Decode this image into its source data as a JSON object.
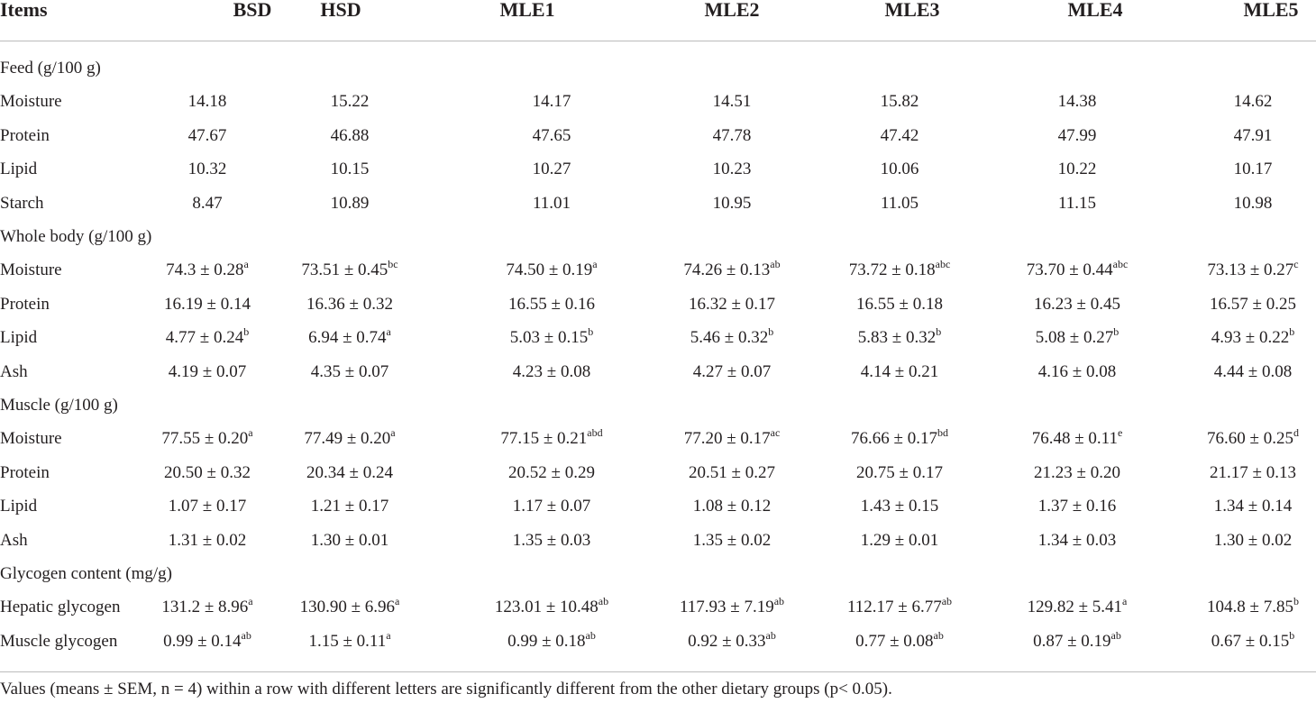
{
  "table": {
    "columns": [
      "Items",
      "BSD",
      "HSD",
      "MLE1",
      "MLE2",
      "MLE3",
      "MLE4",
      "MLE5"
    ],
    "sections": [
      {
        "title": "Feed (g/100 g)",
        "rows": [
          {
            "label": "Moisture",
            "cells": [
              {
                "text": "14.18"
              },
              {
                "text": "15.22"
              },
              {
                "text": "14.17"
              },
              {
                "text": "14.51"
              },
              {
                "text": "15.82"
              },
              {
                "text": "14.38"
              },
              {
                "text": "14.62"
              }
            ]
          },
          {
            "label": "Protein",
            "cells": [
              {
                "text": "47.67"
              },
              {
                "text": "46.88"
              },
              {
                "text": "47.65"
              },
              {
                "text": "47.78"
              },
              {
                "text": "47.42"
              },
              {
                "text": "47.99"
              },
              {
                "text": "47.91"
              }
            ]
          },
          {
            "label": "Lipid",
            "cells": [
              {
                "text": "10.32"
              },
              {
                "text": "10.15"
              },
              {
                "text": "10.27"
              },
              {
                "text": "10.23"
              },
              {
                "text": "10.06"
              },
              {
                "text": "10.22"
              },
              {
                "text": "10.17"
              }
            ]
          },
          {
            "label": "Starch",
            "cells": [
              {
                "text": "8.47"
              },
              {
                "text": "10.89"
              },
              {
                "text": "11.01"
              },
              {
                "text": "10.95"
              },
              {
                "text": "11.05"
              },
              {
                "text": "11.15"
              },
              {
                "text": "10.98"
              }
            ]
          }
        ]
      },
      {
        "title": "Whole body (g/100 g)",
        "rows": [
          {
            "label": "Moisture",
            "cells": [
              {
                "text": "74.3 ± 0.28",
                "sup": "a"
              },
              {
                "text": "73.51 ± 0.45",
                "sup": "bc"
              },
              {
                "text": "74.50 ± 0.19",
                "sup": "a"
              },
              {
                "text": "74.26 ± 0.13",
                "sup": "ab"
              },
              {
                "text": "73.72 ± 0.18",
                "sup": "abc"
              },
              {
                "text": "73.70 ± 0.44",
                "sup": "abc"
              },
              {
                "text": "73.13 ± 0.27",
                "sup": "c"
              }
            ]
          },
          {
            "label": "Protein",
            "cells": [
              {
                "text": "16.19 ± 0.14"
              },
              {
                "text": "16.36 ± 0.32"
              },
              {
                "text": "16.55 ± 0.16"
              },
              {
                "text": "16.32 ± 0.17"
              },
              {
                "text": "16.55 ± 0.18"
              },
              {
                "text": "16.23 ± 0.45"
              },
              {
                "text": "16.57 ± 0.25"
              }
            ]
          },
          {
            "label": "Lipid",
            "cells": [
              {
                "text": "4.77 ± 0.24",
                "sup": "b"
              },
              {
                "text": "6.94 ± 0.74",
                "sup": "a"
              },
              {
                "text": "5.03 ± 0.15",
                "sup": "b"
              },
              {
                "text": "5.46 ± 0.32",
                "sup": "b"
              },
              {
                "text": "5.83 ± 0.32",
                "sup": "b"
              },
              {
                "text": "5.08 ± 0.27",
                "sup": "b"
              },
              {
                "text": "4.93 ± 0.22",
                "sup": "b"
              }
            ]
          },
          {
            "label": "Ash",
            "cells": [
              {
                "text": "4.19 ± 0.07"
              },
              {
                "text": "4.35 ± 0.07"
              },
              {
                "text": "4.23 ± 0.08"
              },
              {
                "text": "4.27 ± 0.07"
              },
              {
                "text": "4.14 ± 0.21"
              },
              {
                "text": "4.16 ± 0.08"
              },
              {
                "text": "4.44 ± 0.08"
              }
            ]
          }
        ]
      },
      {
        "title": "Muscle (g/100 g)",
        "rows": [
          {
            "label": "Moisture",
            "cells": [
              {
                "text": "77.55 ± 0.20",
                "sup": "a"
              },
              {
                "text": "77.49 ± 0.20",
                "sup": "a"
              },
              {
                "text": "77.15 ± 0.21",
                "sup": "abd"
              },
              {
                "text": "77.20 ± 0.17",
                "sup": "ac"
              },
              {
                "text": "76.66 ± 0.17",
                "sup": "bd"
              },
              {
                "text": "76.48 ± 0.11",
                "sup": "e"
              },
              {
                "text": "76.60 ± 0.25",
                "sup": "d"
              }
            ]
          },
          {
            "label": "Protein",
            "cells": [
              {
                "text": "20.50 ± 0.32"
              },
              {
                "text": "20.34 ± 0.24"
              },
              {
                "text": "20.52 ± 0.29"
              },
              {
                "text": "20.51 ± 0.27"
              },
              {
                "text": "20.75 ± 0.17"
              },
              {
                "text": "21.23 ± 0.20"
              },
              {
                "text": "21.17 ± 0.13"
              }
            ]
          },
          {
            "label": "Lipid",
            "cells": [
              {
                "text": "1.07 ± 0.17"
              },
              {
                "text": "1.21 ± 0.17"
              },
              {
                "text": "1.17 ± 0.07"
              },
              {
                "text": "1.08 ± 0.12"
              },
              {
                "text": "1.43 ± 0.15"
              },
              {
                "text": "1.37 ± 0.16"
              },
              {
                "text": "1.34 ± 0.14"
              }
            ]
          },
          {
            "label": "Ash",
            "cells": [
              {
                "text": "1.31 ± 0.02"
              },
              {
                "text": "1.30 ± 0.01"
              },
              {
                "text": "1.35 ± 0.03"
              },
              {
                "text": "1.35 ± 0.02"
              },
              {
                "text": "1.29 ± 0.01"
              },
              {
                "text": "1.34 ± 0.03"
              },
              {
                "text": "1.30 ± 0.02"
              }
            ]
          }
        ]
      },
      {
        "title": "Glycogen content (mg/g)",
        "rows": [
          {
            "label": "Hepatic glycogen",
            "cells": [
              {
                "text": "131.2 ± 8.96",
                "sup": "a"
              },
              {
                "text": "130.90 ± 6.96",
                "sup": "a"
              },
              {
                "text": "123.01 ± 10.48",
                "sup": "ab"
              },
              {
                "text": "117.93 ± 7.19",
                "sup": "ab"
              },
              {
                "text": "112.17 ± 6.77",
                "sup": "ab"
              },
              {
                "text": "129.82 ± 5.41",
                "sup": "a"
              },
              {
                "text": "104.8 ± 7.85",
                "sup": "b"
              }
            ]
          },
          {
            "label": "Muscle glycogen",
            "cells": [
              {
                "text": "0.99 ± 0.14",
                "sup": "ab"
              },
              {
                "text": "1.15 ± 0.11",
                "sup": "a"
              },
              {
                "text": "0.99 ± 0.18",
                "sup": "ab"
              },
              {
                "text": "0.92 ± 0.33",
                "sup": "ab"
              },
              {
                "text": "0.77 ± 0.08",
                "sup": "ab"
              },
              {
                "text": "0.87 ± 0.19",
                "sup": "ab"
              },
              {
                "text": "0.67 ± 0.15",
                "sup": "b"
              }
            ]
          }
        ]
      }
    ],
    "footnote": "Values (means ± SEM, n = 4) within a row with different letters are significantly different from the other dietary groups (p< 0.05)."
  }
}
